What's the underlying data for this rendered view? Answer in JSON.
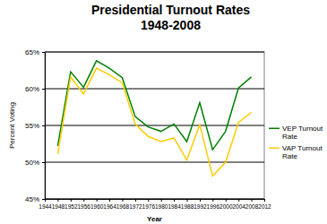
{
  "chart_data": {
    "type": "line",
    "title": [
      "Presidential Turnout Rates",
      "1948-2008"
    ],
    "x_label": "Year",
    "y_label": "Percent Voting",
    "x": [
      1948,
      1952,
      1956,
      1960,
      1964,
      1968,
      1972,
      1976,
      1980,
      1984,
      1988,
      1992,
      1996,
      2000,
      2004,
      2008
    ],
    "series": [
      {
        "name": "VEP Turnout Rate",
        "color": "#008000",
        "values": [
          52.2,
          62.3,
          60.2,
          63.8,
          62.8,
          61.5,
          56.2,
          54.8,
          54.2,
          55.2,
          52.8,
          58.1,
          51.7,
          54.2,
          60.1,
          61.6
        ]
      },
      {
        "name": "VAP Turnout Rate",
        "color": "#ffcc00",
        "values": [
          51.1,
          61.6,
          59.3,
          62.8,
          61.9,
          60.8,
          55.2,
          53.5,
          52.8,
          53.3,
          50.3,
          55.1,
          48.1,
          50.0,
          55.4,
          56.8
        ]
      }
    ],
    "xlim": [
      1944,
      2012
    ],
    "xticks": [
      1944,
      1948,
      1952,
      1956,
      1960,
      1964,
      1968,
      1972,
      1976,
      1980,
      1984,
      1988,
      1992,
      1996,
      2000,
      2004,
      2008,
      2012
    ],
    "ylim": [
      45,
      65
    ],
    "yticks": [
      {
        "value": 45,
        "label": "45%"
      },
      {
        "value": 50,
        "label": "50%"
      },
      {
        "value": 55,
        "label": "55%"
      },
      {
        "value": 60,
        "label": "60%"
      },
      {
        "value": 65,
        "label": "65%"
      }
    ],
    "grid": true,
    "legend": "right"
  }
}
